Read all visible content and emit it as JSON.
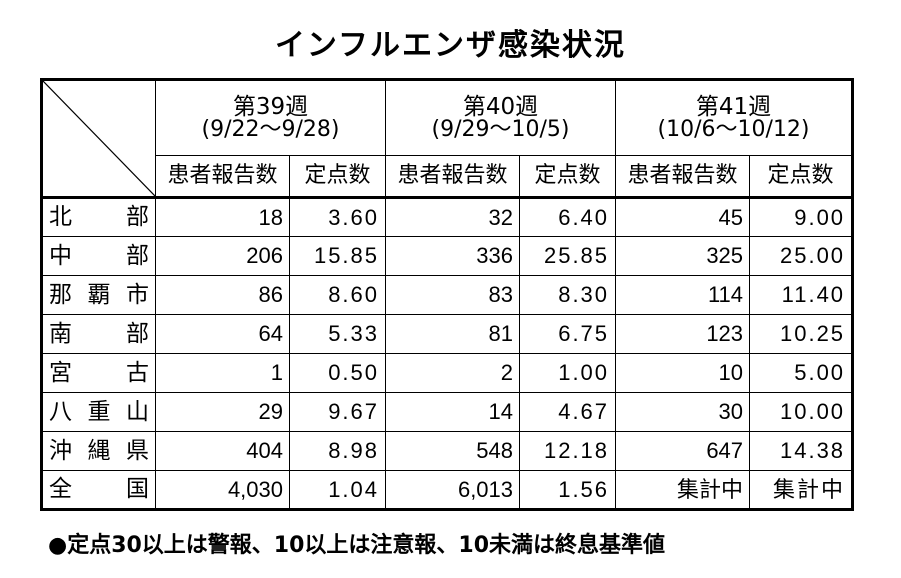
{
  "title": "インフルエンザ感染状況",
  "weeks": [
    {
      "label": "第39週",
      "range": "(9/22～9/28)"
    },
    {
      "label": "第40週",
      "range": "(9/29～10/5)"
    },
    {
      "label": "第41週",
      "range": "(10/6～10/12)"
    }
  ],
  "subheaders": {
    "patients": "患者報告数",
    "sentinel": "定点数"
  },
  "rows": [
    {
      "region": [
        "北",
        "部"
      ],
      "values": [
        "18",
        "3.60",
        "32",
        "6.40",
        "45",
        "9.00"
      ]
    },
    {
      "region": [
        "中",
        "部"
      ],
      "values": [
        "206",
        "15.85",
        "336",
        "25.85",
        "325",
        "25.00"
      ]
    },
    {
      "region": [
        "那",
        "覇",
        "市"
      ],
      "values": [
        "86",
        "8.60",
        "83",
        "8.30",
        "114",
        "11.40"
      ]
    },
    {
      "region": [
        "南",
        "部"
      ],
      "values": [
        "64",
        "5.33",
        "81",
        "6.75",
        "123",
        "10.25"
      ]
    },
    {
      "region": [
        "宮",
        "古"
      ],
      "values": [
        "1",
        "0.50",
        "2",
        "1.00",
        "10",
        "5.00"
      ]
    },
    {
      "region": [
        "八",
        "重",
        "山"
      ],
      "values": [
        "29",
        "9.67",
        "14",
        "4.67",
        "30",
        "10.00"
      ]
    },
    {
      "region": [
        "沖",
        "縄",
        "県"
      ],
      "values": [
        "404",
        "8.98",
        "548",
        "12.18",
        "647",
        "14.38"
      ]
    },
    {
      "region": [
        "全",
        "国"
      ],
      "values": [
        "4,030",
        "1.04",
        "6,013",
        "1.56",
        "集計中",
        "集計中"
      ]
    }
  ],
  "note": "●定点30以上は警報、10以上は注意報、10未満は終息基準値"
}
